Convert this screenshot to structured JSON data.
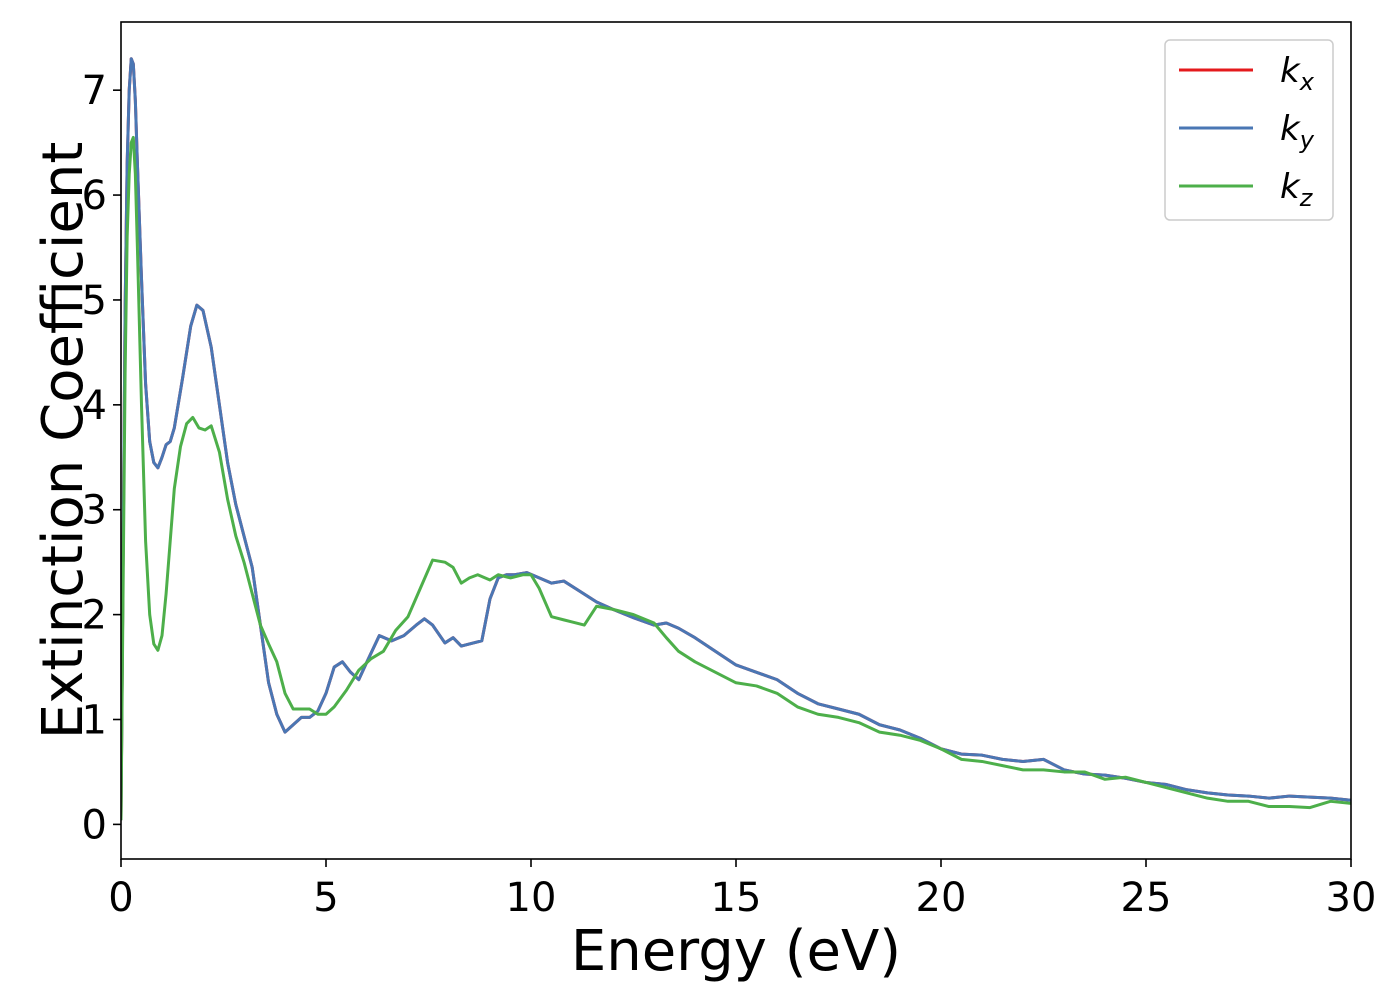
{
  "chart_data": {
    "type": "line",
    "title": "",
    "xlabel": "Energy (eV)",
    "ylabel": "Extinction Coefficient",
    "xlim": [
      0,
      30
    ],
    "ylim": [
      -0.33,
      7.65
    ],
    "xticks": [
      0,
      5,
      10,
      15,
      20,
      25,
      30
    ],
    "yticks": [
      0,
      1,
      2,
      3,
      4,
      5,
      6,
      7
    ],
    "grid": false,
    "legend_position": "top-right",
    "series": [
      {
        "name": "k_x",
        "legend_base": "k",
        "legend_sub": "x",
        "color": "#e41a1c",
        "x": [
          0,
          0.05,
          0.1,
          0.15,
          0.2,
          0.25,
          0.3,
          0.35,
          0.4,
          0.5,
          0.6,
          0.7,
          0.8,
          0.9,
          1.0,
          1.1,
          1.2,
          1.3,
          1.5,
          1.7,
          1.85,
          2.0,
          2.2,
          2.4,
          2.6,
          2.8,
          3.0,
          3.2,
          3.4,
          3.6,
          3.8,
          4.0,
          4.2,
          4.4,
          4.6,
          4.8,
          5.0,
          5.2,
          5.4,
          5.6,
          5.8,
          6.0,
          6.3,
          6.6,
          6.9,
          7.2,
          7.4,
          7.6,
          7.9,
          8.1,
          8.3,
          8.5,
          8.8,
          9.0,
          9.2,
          9.4,
          9.6,
          9.9,
          10.2,
          10.5,
          10.8,
          11.2,
          11.6,
          12.0,
          12.5,
          13.0,
          13.3,
          13.6,
          14.0,
          14.5,
          15.0,
          15.5,
          16.0,
          16.5,
          17.0,
          17.5,
          18.0,
          18.5,
          19.0,
          19.5,
          20.0,
          20.5,
          21.0,
          21.5,
          22.0,
          22.5,
          23.0,
          23.5,
          24.0,
          24.5,
          25.0,
          25.5,
          26.0,
          26.5,
          27.0,
          27.5,
          28.0,
          28.5,
          29.0,
          29.5,
          30.0
        ],
        "y": [
          0.05,
          2.5,
          4.9,
          6.3,
          7.0,
          7.3,
          7.25,
          6.9,
          6.3,
          5.2,
          4.2,
          3.65,
          3.45,
          3.4,
          3.5,
          3.62,
          3.65,
          3.78,
          4.25,
          4.75,
          4.95,
          4.9,
          4.55,
          4.0,
          3.45,
          3.05,
          2.75,
          2.45,
          1.9,
          1.35,
          1.05,
          0.88,
          0.95,
          1.02,
          1.02,
          1.08,
          1.25,
          1.5,
          1.55,
          1.45,
          1.38,
          1.55,
          1.8,
          1.75,
          1.8,
          1.9,
          1.96,
          1.9,
          1.73,
          1.78,
          1.7,
          1.72,
          1.75,
          2.15,
          2.35,
          2.38,
          2.38,
          2.4,
          2.35,
          2.3,
          2.32,
          2.22,
          2.12,
          2.05,
          1.97,
          1.9,
          1.92,
          1.87,
          1.78,
          1.65,
          1.52,
          1.45,
          1.38,
          1.25,
          1.15,
          1.1,
          1.05,
          0.95,
          0.9,
          0.82,
          0.72,
          0.67,
          0.66,
          0.62,
          0.6,
          0.62,
          0.52,
          0.48,
          0.47,
          0.44,
          0.4,
          0.38,
          0.33,
          0.3,
          0.28,
          0.27,
          0.25,
          0.27,
          0.26,
          0.25,
          0.23
        ]
      },
      {
        "name": "k_y",
        "legend_base": "k",
        "legend_sub": "y",
        "color": "#4a77b4",
        "x": [
          0,
          0.05,
          0.1,
          0.15,
          0.2,
          0.25,
          0.3,
          0.35,
          0.4,
          0.5,
          0.6,
          0.7,
          0.8,
          0.9,
          1.0,
          1.1,
          1.2,
          1.3,
          1.5,
          1.7,
          1.85,
          2.0,
          2.2,
          2.4,
          2.6,
          2.8,
          3.0,
          3.2,
          3.4,
          3.6,
          3.8,
          4.0,
          4.2,
          4.4,
          4.6,
          4.8,
          5.0,
          5.2,
          5.4,
          5.6,
          5.8,
          6.0,
          6.3,
          6.6,
          6.9,
          7.2,
          7.4,
          7.6,
          7.9,
          8.1,
          8.3,
          8.5,
          8.8,
          9.0,
          9.2,
          9.4,
          9.6,
          9.9,
          10.2,
          10.5,
          10.8,
          11.2,
          11.6,
          12.0,
          12.5,
          13.0,
          13.3,
          13.6,
          14.0,
          14.5,
          15.0,
          15.5,
          16.0,
          16.5,
          17.0,
          17.5,
          18.0,
          18.5,
          19.0,
          19.5,
          20.0,
          20.5,
          21.0,
          21.5,
          22.0,
          22.5,
          23.0,
          23.5,
          24.0,
          24.5,
          25.0,
          25.5,
          26.0,
          26.5,
          27.0,
          27.5,
          28.0,
          28.5,
          29.0,
          29.5,
          30.0
        ],
        "y": [
          0.05,
          2.5,
          4.9,
          6.3,
          7.0,
          7.3,
          7.25,
          6.9,
          6.3,
          5.2,
          4.2,
          3.65,
          3.45,
          3.4,
          3.5,
          3.62,
          3.65,
          3.78,
          4.25,
          4.75,
          4.95,
          4.9,
          4.55,
          4.0,
          3.45,
          3.05,
          2.75,
          2.45,
          1.9,
          1.35,
          1.05,
          0.88,
          0.95,
          1.02,
          1.02,
          1.08,
          1.25,
          1.5,
          1.55,
          1.45,
          1.38,
          1.55,
          1.8,
          1.75,
          1.8,
          1.9,
          1.96,
          1.9,
          1.73,
          1.78,
          1.7,
          1.72,
          1.75,
          2.15,
          2.35,
          2.38,
          2.38,
          2.4,
          2.35,
          2.3,
          2.32,
          2.22,
          2.12,
          2.05,
          1.97,
          1.9,
          1.92,
          1.87,
          1.78,
          1.65,
          1.52,
          1.45,
          1.38,
          1.25,
          1.15,
          1.1,
          1.05,
          0.95,
          0.9,
          0.82,
          0.72,
          0.67,
          0.66,
          0.62,
          0.6,
          0.62,
          0.52,
          0.48,
          0.47,
          0.44,
          0.4,
          0.38,
          0.33,
          0.3,
          0.28,
          0.27,
          0.25,
          0.27,
          0.26,
          0.25,
          0.23
        ]
      },
      {
        "name": "k_z",
        "legend_base": "k",
        "legend_sub": "z",
        "color": "#4daf4a",
        "x": [
          0,
          0.05,
          0.1,
          0.15,
          0.2,
          0.25,
          0.3,
          0.35,
          0.4,
          0.5,
          0.6,
          0.7,
          0.8,
          0.9,
          1.0,
          1.1,
          1.2,
          1.3,
          1.45,
          1.6,
          1.75,
          1.9,
          2.05,
          2.2,
          2.4,
          2.6,
          2.8,
          3.0,
          3.2,
          3.4,
          3.6,
          3.8,
          4.0,
          4.2,
          4.4,
          4.6,
          4.8,
          5.0,
          5.2,
          5.5,
          5.8,
          6.1,
          6.4,
          6.7,
          7.0,
          7.3,
          7.6,
          7.9,
          8.1,
          8.3,
          8.5,
          8.7,
          9.0,
          9.2,
          9.5,
          9.8,
          10.0,
          10.2,
          10.5,
          10.8,
          11.0,
          11.3,
          11.6,
          12.0,
          12.5,
          13.0,
          13.3,
          13.6,
          14.0,
          14.5,
          15.0,
          15.5,
          16.0,
          16.5,
          17.0,
          17.5,
          18.0,
          18.5,
          19.0,
          19.5,
          20.0,
          20.5,
          21.0,
          21.5,
          22.0,
          22.5,
          23.0,
          23.5,
          24.0,
          24.5,
          25.0,
          25.5,
          26.0,
          26.5,
          27.0,
          27.5,
          28.0,
          28.5,
          29.0,
          29.5,
          30.0
        ],
        "y": [
          0.05,
          2.2,
          4.3,
          5.6,
          6.2,
          6.5,
          6.55,
          6.2,
          5.5,
          4.0,
          2.7,
          2.0,
          1.72,
          1.66,
          1.8,
          2.2,
          2.7,
          3.2,
          3.6,
          3.82,
          3.88,
          3.78,
          3.76,
          3.8,
          3.55,
          3.1,
          2.75,
          2.5,
          2.2,
          1.9,
          1.72,
          1.55,
          1.25,
          1.1,
          1.1,
          1.1,
          1.05,
          1.05,
          1.12,
          1.28,
          1.47,
          1.58,
          1.65,
          1.85,
          1.98,
          2.25,
          2.52,
          2.5,
          2.45,
          2.3,
          2.35,
          2.38,
          2.33,
          2.38,
          2.35,
          2.38,
          2.38,
          2.25,
          1.98,
          1.95,
          1.93,
          1.9,
          2.08,
          2.05,
          2.0,
          1.92,
          1.78,
          1.65,
          1.55,
          1.45,
          1.35,
          1.32,
          1.25,
          1.12,
          1.05,
          1.02,
          0.97,
          0.88,
          0.85,
          0.8,
          0.72,
          0.62,
          0.6,
          0.56,
          0.52,
          0.52,
          0.5,
          0.5,
          0.43,
          0.45,
          0.4,
          0.35,
          0.3,
          0.25,
          0.22,
          0.22,
          0.17,
          0.17,
          0.16,
          0.22,
          0.2
        ]
      }
    ]
  }
}
